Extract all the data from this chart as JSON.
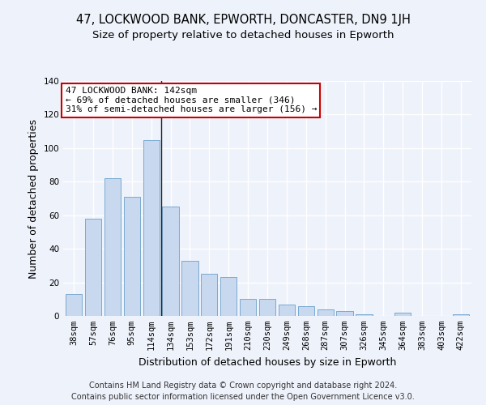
{
  "title": "47, LOCKWOOD BANK, EPWORTH, DONCASTER, DN9 1JH",
  "subtitle": "Size of property relative to detached houses in Epworth",
  "xlabel": "Distribution of detached houses by size in Epworth",
  "ylabel": "Number of detached properties",
  "categories": [
    "38sqm",
    "57sqm",
    "76sqm",
    "95sqm",
    "114sqm",
    "134sqm",
    "153sqm",
    "172sqm",
    "191sqm",
    "210sqm",
    "230sqm",
    "249sqm",
    "268sqm",
    "287sqm",
    "307sqm",
    "326sqm",
    "345sqm",
    "364sqm",
    "383sqm",
    "403sqm",
    "422sqm"
  ],
  "values": [
    13,
    58,
    82,
    71,
    105,
    65,
    33,
    25,
    23,
    10,
    10,
    7,
    6,
    4,
    3,
    1,
    0,
    2,
    0,
    0,
    1
  ],
  "bar_color": "#c8d8ee",
  "bar_edge_color": "#7aaad0",
  "annotation_text": "47 LOCKWOOD BANK: 142sqm\n← 69% of detached houses are smaller (346)\n31% of semi-detached houses are larger (156) →",
  "annotation_box_color": "#ffffff",
  "annotation_box_edge": "#cc0000",
  "property_line_x": 5,
  "ylim": [
    0,
    140
  ],
  "yticks": [
    0,
    20,
    40,
    60,
    80,
    100,
    120,
    140
  ],
  "footer": "Contains HM Land Registry data © Crown copyright and database right 2024.\nContains public sector information licensed under the Open Government Licence v3.0.",
  "bg_color": "#eef2fb",
  "grid_color": "#ffffff",
  "title_fontsize": 10.5,
  "subtitle_fontsize": 9.5,
  "ylabel_fontsize": 9,
  "xlabel_fontsize": 9,
  "tick_fontsize": 7.5,
  "footer_fontsize": 7,
  "annotation_fontsize": 8
}
